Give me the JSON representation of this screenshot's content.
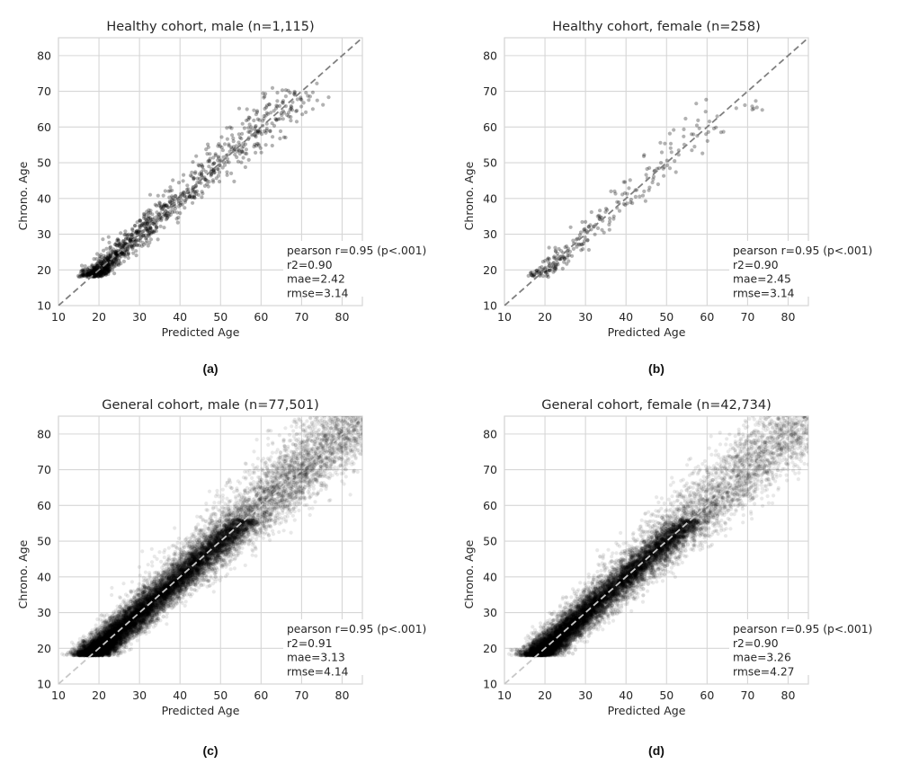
{
  "chart_data": [
    {
      "type": "scatter",
      "panel_label": "(a)",
      "title": "Healthy cohort, male (n=1,115)",
      "xlabel": "Predicted Age",
      "ylabel": "Chrono. Age",
      "xlim": [
        10,
        85
      ],
      "ylim": [
        10,
        85
      ],
      "xticks": [
        "10",
        "20",
        "30",
        "40",
        "50",
        "60",
        "70",
        "80"
      ],
      "yticks": [
        "10",
        "20",
        "30",
        "40",
        "50",
        "60",
        "70",
        "80"
      ],
      "grid": true,
      "identity_line": true,
      "n": 1115,
      "point_alpha": 0.3,
      "floor_age": 18,
      "spread": 3.1,
      "stats": [
        "pearson r=0.95 (p<.001)",
        "r2=0.90",
        "mae=2.42",
        "rmse=3.14"
      ],
      "age_distribution": {
        "min": 18,
        "mode": 27,
        "max": 70
      }
    },
    {
      "type": "scatter",
      "panel_label": "(b)",
      "title": "Healthy cohort, female (n=258)",
      "xlabel": "Predicted Age",
      "ylabel": "Chrono. Age",
      "xlim": [
        10,
        85
      ],
      "ylim": [
        10,
        85
      ],
      "xticks": [
        "10",
        "20",
        "30",
        "40",
        "50",
        "60",
        "70",
        "80"
      ],
      "yticks": [
        "10",
        "20",
        "30",
        "40",
        "50",
        "60",
        "70",
        "80"
      ],
      "grid": true,
      "identity_line": true,
      "n": 258,
      "point_alpha": 0.3,
      "floor_age": 18,
      "spread": 3.1,
      "stats": [
        "pearson r=0.95 (p<.001)",
        "r2=0.90",
        "mae=2.45",
        "rmse=3.14"
      ],
      "age_distribution": {
        "min": 18,
        "mode": 28,
        "max": 68
      }
    },
    {
      "type": "scatter",
      "panel_label": "(c)",
      "title": "General cohort, male (n=77,501)",
      "xlabel": "Predicted Age",
      "ylabel": "Chrono. Age",
      "xlim": [
        10,
        85
      ],
      "ylim": [
        10,
        85
      ],
      "xticks": [
        "10",
        "20",
        "30",
        "40",
        "50",
        "60",
        "70",
        "80"
      ],
      "yticks": [
        "10",
        "20",
        "30",
        "40",
        "50",
        "60",
        "70",
        "80"
      ],
      "grid": true,
      "identity_line": true,
      "n": 77501,
      "point_alpha": 0.05,
      "floor_age": 18,
      "spread": 4.1,
      "stats": [
        "pearson r=0.95 (p<.001)",
        "r2=0.91",
        "mae=3.13",
        "rmse=4.14"
      ],
      "age_distribution": {
        "min": 18,
        "mode": 35,
        "max": 85
      }
    },
    {
      "type": "scatter",
      "panel_label": "(d)",
      "title": "General cohort, female (n=42,734)",
      "xlabel": "Predicted Age",
      "ylabel": "Chrono. Age",
      "xlim": [
        10,
        85
      ],
      "ylim": [
        10,
        85
      ],
      "xticks": [
        "10",
        "20",
        "30",
        "40",
        "50",
        "60",
        "70",
        "80"
      ],
      "yticks": [
        "10",
        "20",
        "30",
        "40",
        "50",
        "60",
        "70",
        "80"
      ],
      "grid": true,
      "identity_line": true,
      "n": 42734,
      "point_alpha": 0.05,
      "floor_age": 18,
      "spread": 4.2,
      "stats": [
        "pearson r=0.95 (p<.001)",
        "r2=0.90",
        "mae=3.26",
        "rmse=4.27"
      ],
      "age_distribution": {
        "min": 18,
        "mode": 33,
        "max": 85
      }
    }
  ],
  "colors": {
    "grid": "#d6d6d6",
    "text": "#262626",
    "points": "#000000",
    "identity_line": "#808080",
    "identity_line_dense": "#c8c8c8"
  }
}
